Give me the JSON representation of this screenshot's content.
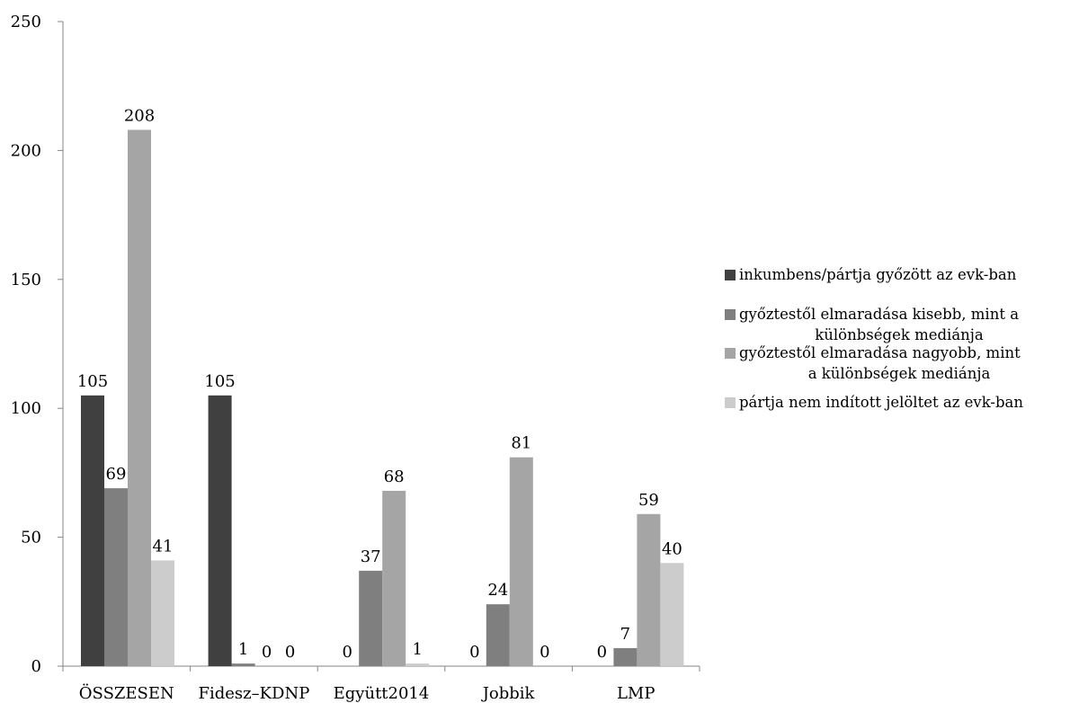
{
  "chart_data": {
    "type": "bar",
    "categories": [
      "ÖSSZESEN",
      "Fidesz–KDNP",
      "Együtt2014",
      "Jobbik",
      "LMP"
    ],
    "ylim": [
      0,
      250
    ],
    "yticks": [
      0,
      50,
      100,
      150,
      200,
      250
    ],
    "grid": false,
    "legend_position": "right",
    "series": [
      {
        "name": "inkumbens/pártja győzött az evk-ban",
        "color": "#404040",
        "values": [
          105,
          105,
          0,
          0,
          0
        ]
      },
      {
        "name": "győztestől elmaradása kisebb, mint a különbségek mediánja",
        "color": "#7f7f7f",
        "values": [
          69,
          1,
          37,
          24,
          7
        ]
      },
      {
        "name": "győztestől elmaradása nagyobb, mint a különbségek mediánja",
        "color": "#a5a5a5",
        "values": [
          208,
          0,
          68,
          81,
          59
        ]
      },
      {
        "name": "pártja nem indított jelöltet az evk-ban",
        "color": "#cccccc",
        "values": [
          41,
          0,
          1,
          0,
          40
        ]
      }
    ],
    "data_labels": [
      [
        "105",
        "69",
        "208",
        "41"
      ],
      [
        "105",
        "1",
        "0",
        "0"
      ],
      [
        "0",
        "37",
        "68",
        "1"
      ],
      [
        "0",
        "24",
        "81",
        "0"
      ],
      [
        "0",
        "7",
        "59",
        "40"
      ]
    ],
    "legend_lines": [
      [
        "inkumbens/pártja győzött az evk-ban"
      ],
      [
        "győztestől elmaradása kisebb, mint a",
        "különbségek mediánja"
      ],
      [
        "győztestől elmaradása nagyobb, mint",
        "a különbségek mediánja"
      ],
      [
        "pártja nem indított jelöltet az evk-ban"
      ]
    ]
  }
}
